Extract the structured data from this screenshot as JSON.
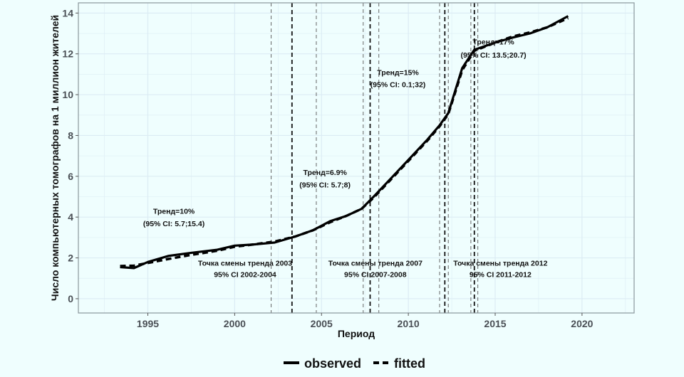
{
  "chart_data": {
    "type": "line",
    "title": "",
    "xlabel": "Период",
    "ylabel": "Число компьютерных томографов на 1 миллион жителей",
    "xlim": [
      1991,
      2023
    ],
    "ylim": [
      -0.7,
      14.5
    ],
    "xticks": [
      1995,
      2000,
      2005,
      2010,
      2015,
      2020
    ],
    "yticks": [
      0,
      2,
      4,
      6,
      8,
      10,
      12,
      14
    ],
    "grid": true,
    "legend_position": "bottom",
    "series": [
      {
        "name": "observed",
        "style": "solid",
        "x": [
          1993.4,
          1994.2,
          1995,
          1996.2,
          1997.5,
          1999,
          2000,
          2001,
          2002.3,
          2003.5,
          2004.5,
          2005.5,
          2006.4,
          2007.3,
          2008,
          2009,
          2010,
          2011.1,
          2011.8,
          2012.3,
          2013.1,
          2013.8,
          2015,
          2016,
          2017,
          2018,
          2019.2
        ],
        "y": [
          1.55,
          1.5,
          1.8,
          2.1,
          2.25,
          2.4,
          2.6,
          2.65,
          2.75,
          3.05,
          3.35,
          3.8,
          4.05,
          4.4,
          5.0,
          5.9,
          6.8,
          7.8,
          8.5,
          9.1,
          11.3,
          12.2,
          12.55,
          12.8,
          13.0,
          13.3,
          13.85
        ]
      },
      {
        "name": "fitted",
        "style": "dashed",
        "x": [
          1993.4,
          1994.2,
          1995,
          1996.2,
          1997.5,
          1999,
          2000,
          2001,
          2002.3,
          2003.5,
          2004.5,
          2005.5,
          2006.4,
          2007.3,
          2008,
          2009,
          2010,
          2011.1,
          2011.8,
          2012.3,
          2013.1,
          2013.8,
          2015,
          2016,
          2017,
          2018,
          2019.2
        ],
        "y": [
          1.6,
          1.62,
          1.75,
          1.95,
          2.15,
          2.35,
          2.55,
          2.65,
          2.8,
          3.05,
          3.35,
          3.75,
          4.05,
          4.4,
          4.95,
          5.85,
          6.75,
          7.75,
          8.45,
          9.05,
          11.2,
          12.15,
          12.55,
          12.85,
          13.05,
          13.3,
          13.75
        ]
      }
    ],
    "vlines": [
      {
        "x": 2002.1,
        "kind": "ci"
      },
      {
        "x": 2003.3,
        "kind": "estimate"
      },
      {
        "x": 2004.7,
        "kind": "ci"
      },
      {
        "x": 2007.4,
        "kind": "ci"
      },
      {
        "x": 2007.8,
        "kind": "estimate"
      },
      {
        "x": 2008.3,
        "kind": "ci"
      },
      {
        "x": 2011.8,
        "kind": "ci"
      },
      {
        "x": 2012.1,
        "kind": "estimate"
      },
      {
        "x": 2012.3,
        "kind": "ci"
      },
      {
        "x": 2013.6,
        "kind": "ci"
      },
      {
        "x": 2013.8,
        "kind": "estimate"
      },
      {
        "x": 2014.0,
        "kind": "ci"
      }
    ],
    "annotations": [
      {
        "x": 1996.5,
        "y": 4.3,
        "text": "Тренд=10%"
      },
      {
        "x": 1996.5,
        "y": 3.7,
        "text": "(95% CI: 5.7;15.4)"
      },
      {
        "x": 2005.2,
        "y": 6.2,
        "text": "Тренд=6.9%"
      },
      {
        "x": 2005.2,
        "y": 5.6,
        "text": "(95% CI: 5.7;8)"
      },
      {
        "x": 2009.4,
        "y": 11.1,
        "text": "Тренд=15%"
      },
      {
        "x": 2009.4,
        "y": 10.5,
        "text": "(95% CI: 0.1;32)"
      },
      {
        "x": 2014.9,
        "y": 12.6,
        "text": "Тренд=17%"
      },
      {
        "x": 2014.9,
        "y": 11.95,
        "text": "(95% CI: 13.5;20.7)"
      },
      {
        "x": 2000.6,
        "y": 1.75,
        "text": "Точка смены тренда 2003"
      },
      {
        "x": 2000.6,
        "y": 1.2,
        "text": "95% CI 2002-2004"
      },
      {
        "x": 2008.1,
        "y": 1.75,
        "text": "Точка смены тренда 2007"
      },
      {
        "x": 2008.1,
        "y": 1.2,
        "text": "95% CI 2007-2008"
      },
      {
        "x": 2015.3,
        "y": 1.75,
        "text": "Точка смены тренда 2012"
      },
      {
        "x": 2015.3,
        "y": 1.2,
        "text": "95% CI 2011-2012"
      }
    ],
    "colors": {
      "background": "#effefe",
      "line": "#000000",
      "grid": "#dcecf4"
    }
  },
  "legend": {
    "observed": "observed",
    "fitted": "fitted"
  }
}
